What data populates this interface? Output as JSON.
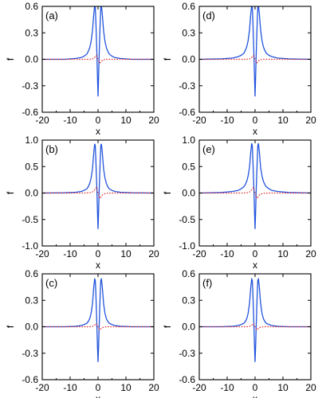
{
  "figure": {
    "background": "#ffffff"
  },
  "chart_data": [
    {
      "id": "a",
      "type": "line",
      "panel_label": "(a)",
      "xlabel": "x",
      "ylabel": "f",
      "xlim": [
        -20,
        20
      ],
      "ylim": [
        -0.6,
        0.6
      ],
      "xticks": [
        -20,
        -10,
        0,
        10,
        20
      ],
      "xtick_labels": [
        "-20",
        "-10",
        "0",
        "10",
        "20"
      ],
      "yticks": [
        -0.6,
        -0.3,
        0.0,
        0.3,
        0.6
      ],
      "ytick_labels": [
        "-0.6",
        "-0.3",
        "0.0",
        "0.3",
        "0.6"
      ],
      "grid": false,
      "series": [
        {
          "color": "#2255dd",
          "style": "solid",
          "x": [
            -20,
            -12,
            -8,
            -6,
            -5,
            -4,
            -3.5,
            -3,
            -2.5,
            -2,
            -1.5,
            -1.2,
            -1,
            -0.8,
            -0.6,
            -0.4,
            -0.2,
            0,
            0.2,
            0.4,
            0.6,
            0.8,
            1,
            1.2,
            1.5,
            2,
            2.5,
            3,
            3.5,
            4,
            5,
            6,
            8,
            12,
            20
          ],
          "y": [
            0,
            0,
            0.01,
            0.02,
            0.035,
            0.06,
            0.09,
            0.13,
            0.2,
            0.32,
            0.52,
            0.61,
            0.6,
            0.45,
            0.25,
            0.05,
            -0.2,
            -0.42,
            -0.2,
            0.05,
            0.25,
            0.45,
            0.6,
            0.61,
            0.52,
            0.32,
            0.2,
            0.13,
            0.09,
            0.06,
            0.035,
            0.02,
            0.01,
            0,
            0
          ]
        },
        {
          "color": "#dd2222",
          "style": "dotted",
          "x": [
            -20,
            -5,
            -3,
            -2,
            -1.5,
            -1,
            -0.6,
            -0.3,
            0,
            0.3,
            0.6,
            1,
            1.5,
            2,
            3,
            5,
            20
          ],
          "y": [
            0,
            0,
            0,
            0.005,
            0.01,
            0.03,
            0.04,
            0.02,
            0,
            -0.02,
            -0.04,
            -0.03,
            -0.01,
            -0.005,
            0,
            0,
            0
          ]
        }
      ]
    },
    {
      "id": "d",
      "type": "line",
      "panel_label": "(d)",
      "xlabel": "x",
      "ylabel": "f",
      "xlim": [
        -20,
        20
      ],
      "ylim": [
        -0.6,
        0.6
      ],
      "xticks": [
        -20,
        -10,
        0,
        10,
        20
      ],
      "xtick_labels": [
        "-20",
        "-10",
        "0",
        "10",
        "20"
      ],
      "yticks": [
        -0.6,
        -0.3,
        0.0,
        0.3,
        0.6
      ],
      "ytick_labels": [
        "-0.6",
        "-0.3",
        "0.0",
        "0.3",
        "0.6"
      ],
      "grid": false,
      "series": [
        {
          "color": "#2255dd",
          "style": "solid",
          "x": [
            -20,
            -12,
            -8,
            -6,
            -5,
            -4,
            -3.5,
            -3,
            -2.5,
            -2,
            -1.5,
            -1.2,
            -1,
            -0.8,
            -0.6,
            -0.4,
            -0.2,
            0,
            0.2,
            0.4,
            0.6,
            0.8,
            1,
            1.2,
            1.5,
            2,
            2.5,
            3,
            3.5,
            4,
            5,
            6,
            8,
            12,
            20
          ],
          "y": [
            0,
            0.005,
            0.015,
            0.03,
            0.045,
            0.07,
            0.1,
            0.14,
            0.21,
            0.33,
            0.53,
            0.61,
            0.6,
            0.45,
            0.25,
            0.05,
            -0.2,
            -0.42,
            -0.2,
            0.05,
            0.25,
            0.45,
            0.6,
            0.61,
            0.53,
            0.33,
            0.21,
            0.14,
            0.1,
            0.07,
            0.045,
            0.03,
            0.015,
            0.005,
            0
          ]
        },
        {
          "color": "#dd2222",
          "style": "dotted",
          "x": [
            -20,
            -5,
            -3,
            -2,
            -1.5,
            -1,
            -0.6,
            -0.3,
            0,
            0.3,
            0.6,
            1,
            1.5,
            2,
            3,
            5,
            20
          ],
          "y": [
            0,
            0,
            0,
            0.005,
            0.01,
            0.03,
            0.04,
            0.02,
            0,
            -0.02,
            -0.04,
            -0.03,
            -0.01,
            -0.005,
            0,
            0,
            0
          ]
        }
      ]
    },
    {
      "id": "b",
      "type": "line",
      "panel_label": "(b)",
      "xlabel": "x",
      "ylabel": "f",
      "xlim": [
        -20,
        20
      ],
      "ylim": [
        -1.0,
        1.0
      ],
      "xticks": [
        -20,
        -10,
        0,
        10,
        20
      ],
      "xtick_labels": [
        "-20",
        "-10",
        "0",
        "10",
        "20"
      ],
      "yticks": [
        -1.0,
        -0.5,
        0.0,
        0.5,
        1.0
      ],
      "ytick_labels": [
        "-1.0",
        "-0.5",
        "0.0",
        "0.5",
        "1.0"
      ],
      "grid": false,
      "series": [
        {
          "color": "#2255dd",
          "style": "solid",
          "x": [
            -20,
            -12,
            -8,
            -6,
            -5,
            -4,
            -3.5,
            -3,
            -2.5,
            -2,
            -1.5,
            -1.2,
            -1,
            -0.8,
            -0.6,
            -0.4,
            -0.2,
            0,
            0.2,
            0.4,
            0.6,
            0.8,
            1,
            1.2,
            1.5,
            2,
            2.5,
            3,
            3.5,
            4,
            5,
            6,
            8,
            12,
            20
          ],
          "y": [
            0,
            0.005,
            0.015,
            0.03,
            0.05,
            0.08,
            0.12,
            0.18,
            0.28,
            0.45,
            0.78,
            0.93,
            0.9,
            0.65,
            0.35,
            0.05,
            -0.35,
            -0.68,
            -0.35,
            0.05,
            0.35,
            0.65,
            0.9,
            0.93,
            0.78,
            0.45,
            0.28,
            0.18,
            0.12,
            0.08,
            0.05,
            0.03,
            0.015,
            0.005,
            0
          ]
        },
        {
          "color": "#dd2222",
          "style": "dotted",
          "x": [
            -20,
            -5,
            -3,
            -2,
            -1.5,
            -1,
            -0.6,
            -0.3,
            0,
            0.3,
            0.6,
            1,
            1.5,
            2,
            3,
            5,
            20
          ],
          "y": [
            0,
            0,
            0.005,
            0.02,
            0.04,
            0.08,
            0.1,
            0.05,
            0,
            -0.05,
            -0.1,
            -0.08,
            -0.04,
            -0.02,
            -0.005,
            0,
            0
          ]
        }
      ]
    },
    {
      "id": "e",
      "type": "line",
      "panel_label": "(e)",
      "xlabel": "x",
      "ylabel": "f",
      "xlim": [
        -20,
        20
      ],
      "ylim": [
        -1.0,
        1.0
      ],
      "xticks": [
        -20,
        -10,
        0,
        10,
        20
      ],
      "xtick_labels": [
        "-20",
        "-10",
        "0",
        "10",
        "20"
      ],
      "yticks": [
        -1.0,
        -0.5,
        0.0,
        0.5,
        1.0
      ],
      "ytick_labels": [
        "-1.0",
        "-0.5",
        "0.0",
        "0.5",
        "1.0"
      ],
      "grid": false,
      "series": [
        {
          "color": "#2255dd",
          "style": "solid",
          "x": [
            -20,
            -12,
            -8,
            -6,
            -5,
            -4,
            -3.5,
            -3,
            -2.5,
            -2,
            -1.5,
            -1.2,
            -1,
            -0.8,
            -0.6,
            -0.4,
            -0.2,
            0,
            0.2,
            0.4,
            0.6,
            0.8,
            1,
            1.2,
            1.5,
            2,
            2.5,
            3,
            3.5,
            4,
            5,
            6,
            8,
            12,
            20
          ],
          "y": [
            0,
            0.01,
            0.03,
            0.05,
            0.08,
            0.12,
            0.16,
            0.22,
            0.32,
            0.48,
            0.8,
            0.94,
            0.9,
            0.65,
            0.35,
            0.05,
            -0.35,
            -0.68,
            -0.35,
            0.05,
            0.35,
            0.65,
            0.9,
            0.94,
            0.8,
            0.48,
            0.32,
            0.22,
            0.16,
            0.12,
            0.08,
            0.05,
            0.03,
            0.01,
            0
          ]
        },
        {
          "color": "#dd2222",
          "style": "dotted",
          "x": [
            -20,
            -5,
            -3,
            -2,
            -1.5,
            -1,
            -0.6,
            -0.3,
            0,
            0.3,
            0.6,
            1,
            1.5,
            2,
            3,
            5,
            20
          ],
          "y": [
            0,
            0,
            0.005,
            0.02,
            0.04,
            0.08,
            0.1,
            0.05,
            0,
            -0.05,
            -0.1,
            -0.08,
            -0.04,
            -0.02,
            -0.005,
            0,
            0
          ]
        }
      ]
    },
    {
      "id": "c",
      "type": "line",
      "panel_label": "(c)",
      "xlabel": "x",
      "ylabel": "f",
      "xlim": [
        -20,
        20
      ],
      "ylim": [
        -0.6,
        0.6
      ],
      "xticks": [
        -20,
        -10,
        0,
        10,
        20
      ],
      "xtick_labels": [
        "-20",
        "-10",
        "0",
        "10",
        "20"
      ],
      "yticks": [
        -0.6,
        -0.3,
        0.0,
        0.3,
        0.6
      ],
      "ytick_labels": [
        "-0.6",
        "-0.3",
        "0.0",
        "0.3",
        "0.6"
      ],
      "grid": false,
      "series": [
        {
          "color": "#2255dd",
          "style": "solid",
          "x": [
            -20,
            -12,
            -8,
            -6,
            -5,
            -4,
            -3.5,
            -3,
            -2.5,
            -2,
            -1.5,
            -1.2,
            -1,
            -0.8,
            -0.6,
            -0.4,
            -0.2,
            0,
            0.2,
            0.4,
            0.6,
            0.8,
            1,
            1.2,
            1.5,
            2,
            2.5,
            3,
            3.5,
            4,
            5,
            6,
            8,
            12,
            20
          ],
          "y": [
            0,
            0,
            0.005,
            0.015,
            0.025,
            0.04,
            0.06,
            0.09,
            0.15,
            0.26,
            0.46,
            0.54,
            0.53,
            0.4,
            0.2,
            0,
            -0.22,
            -0.4,
            -0.22,
            0,
            0.2,
            0.4,
            0.53,
            0.54,
            0.46,
            0.26,
            0.15,
            0.09,
            0.06,
            0.04,
            0.025,
            0.015,
            0.005,
            0,
            0
          ]
        },
        {
          "color": "#dd2222",
          "style": "dotted",
          "x": [
            -20,
            -5,
            -3,
            -2,
            -1.5,
            -1,
            -0.6,
            -0.3,
            0,
            0.3,
            0.6,
            1,
            1.5,
            2,
            3,
            5,
            20
          ],
          "y": [
            0,
            0,
            0,
            0.005,
            0.01,
            0.025,
            0.035,
            0.02,
            0,
            -0.02,
            -0.035,
            -0.025,
            -0.01,
            -0.005,
            0,
            0,
            0
          ]
        }
      ]
    },
    {
      "id": "f",
      "type": "line",
      "panel_label": "(f)",
      "xlabel": "x",
      "ylabel": "f",
      "xlim": [
        -20,
        20
      ],
      "ylim": [
        -0.6,
        0.6
      ],
      "xticks": [
        -20,
        -10,
        0,
        10,
        20
      ],
      "xtick_labels": [
        "-20",
        "-10",
        "0",
        "10",
        "20"
      ],
      "yticks": [
        -0.6,
        -0.3,
        0.0,
        0.3,
        0.6
      ],
      "ytick_labels": [
        "-0.6",
        "-0.3",
        "0.0",
        "0.3",
        "0.6"
      ],
      "grid": false,
      "series": [
        {
          "color": "#2255dd",
          "style": "solid",
          "x": [
            -20,
            -12,
            -8,
            -6,
            -5,
            -4,
            -3.5,
            -3,
            -2.5,
            -2,
            -1.5,
            -1.2,
            -1,
            -0.8,
            -0.6,
            -0.4,
            -0.2,
            0,
            0.2,
            0.4,
            0.6,
            0.8,
            1,
            1.2,
            1.5,
            2,
            2.5,
            3,
            3.5,
            4,
            5,
            6,
            8,
            12,
            20
          ],
          "y": [
            0,
            0,
            0.005,
            0.015,
            0.025,
            0.04,
            0.06,
            0.09,
            0.15,
            0.26,
            0.46,
            0.54,
            0.53,
            0.4,
            0.2,
            0,
            -0.22,
            -0.4,
            -0.22,
            0,
            0.2,
            0.4,
            0.53,
            0.54,
            0.46,
            0.26,
            0.15,
            0.09,
            0.06,
            0.04,
            0.025,
            0.015,
            0.005,
            0,
            0
          ]
        },
        {
          "color": "#dd2222",
          "style": "dotted",
          "x": [
            -20,
            -5,
            -3,
            -2,
            -1.5,
            -1,
            -0.6,
            -0.3,
            0,
            0.3,
            0.6,
            1,
            1.5,
            2,
            3,
            5,
            20
          ],
          "y": [
            0,
            0,
            0,
            0.005,
            0.01,
            0.025,
            0.035,
            0.02,
            0,
            -0.02,
            -0.035,
            -0.025,
            -0.01,
            -0.005,
            0,
            0,
            0
          ]
        }
      ]
    }
  ]
}
